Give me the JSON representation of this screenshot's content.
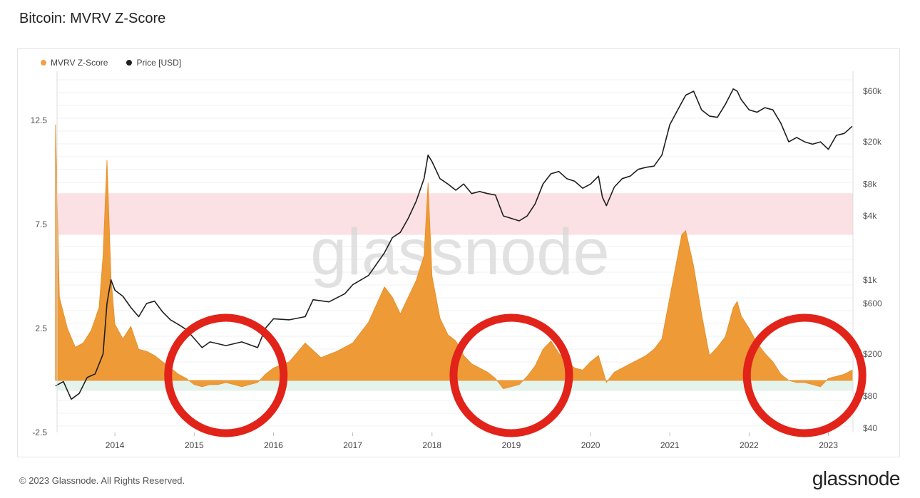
{
  "title": "Bitcoin: MVRV Z-Score",
  "watermark": "glassnode",
  "footer": "© 2023 Glassnode. All Rights Reserved.",
  "brand": "glassnode",
  "legend": [
    {
      "label": "MVRV Z-Score",
      "color": "#f7931a"
    },
    {
      "label": "Price [USD]",
      "color": "#222222"
    }
  ],
  "chart_data": {
    "type": "area",
    "title": "Bitcoin: MVRV Z-Score",
    "x_ticks": [
      "2014",
      "2015",
      "2016",
      "2017",
      "2018",
      "2019",
      "2020",
      "2021",
      "2022",
      "2023"
    ],
    "left_axis": {
      "ticks": [
        "12.5",
        "7.5",
        "2.5",
        "-2.5"
      ],
      "values": [
        12.5,
        7.5,
        2.5,
        -2.5
      ],
      "range": [
        -2.5,
        15.5
      ]
    },
    "right_axis": {
      "scale": "log",
      "ticks": [
        "$60k",
        "$20k",
        "$8k",
        "$4k",
        "$1k",
        "$600",
        "$200",
        "$80",
        "$40"
      ],
      "values": [
        60000,
        20000,
        8000,
        4000,
        1000,
        600,
        200,
        80,
        40
      ]
    },
    "bands": [
      {
        "zone": "overvalued",
        "from": 7.0,
        "to": 9.0,
        "color": "#fbe1e3"
      },
      {
        "zone": "undervalued",
        "from": -0.5,
        "to": 0.0,
        "color": "#e4f3ec"
      }
    ],
    "series": [
      {
        "name": "MVRV Z-Score",
        "axis": "left",
        "color": "#f7931a",
        "x": [
          2013.25,
          2013.3,
          2013.4,
          2013.5,
          2013.6,
          2013.7,
          2013.8,
          2013.85,
          2013.9,
          2013.95,
          2014.0,
          2014.1,
          2014.2,
          2014.3,
          2014.4,
          2014.5,
          2014.6,
          2014.7,
          2014.8,
          2014.9,
          2015.0,
          2015.1,
          2015.2,
          2015.3,
          2015.4,
          2015.5,
          2015.6,
          2015.7,
          2015.8,
          2015.9,
          2016.0,
          2016.2,
          2016.4,
          2016.6,
          2016.8,
          2017.0,
          2017.2,
          2017.4,
          2017.5,
          2017.6,
          2017.7,
          2017.8,
          2017.9,
          2017.95,
          2018.0,
          2018.1,
          2018.2,
          2018.3,
          2018.4,
          2018.5,
          2018.6,
          2018.7,
          2018.8,
          2018.9,
          2019.0,
          2019.1,
          2019.2,
          2019.3,
          2019.4,
          2019.5,
          2019.6,
          2019.7,
          2019.8,
          2019.9,
          2020.0,
          2020.1,
          2020.2,
          2020.3,
          2020.4,
          2020.5,
          2020.6,
          2020.7,
          2020.8,
          2020.9,
          2021.0,
          2021.1,
          2021.15,
          2021.2,
          2021.3,
          2021.4,
          2021.5,
          2021.6,
          2021.7,
          2021.8,
          2021.85,
          2021.9,
          2022.0,
          2022.1,
          2022.2,
          2022.3,
          2022.4,
          2022.5,
          2022.6,
          2022.7,
          2022.8,
          2022.9,
          2023.0,
          2023.1,
          2023.2,
          2023.3
        ],
        "values": [
          12.3,
          4.0,
          2.5,
          1.6,
          1.8,
          2.4,
          3.5,
          6.0,
          10.6,
          5.0,
          2.7,
          2.0,
          2.6,
          1.5,
          1.4,
          1.2,
          0.9,
          0.6,
          0.3,
          0.1,
          -0.2,
          -0.3,
          -0.2,
          -0.2,
          -0.1,
          -0.2,
          -0.3,
          -0.2,
          -0.1,
          0.3,
          0.6,
          0.9,
          1.8,
          1.1,
          1.4,
          1.8,
          2.8,
          4.5,
          4.0,
          3.2,
          4.0,
          4.8,
          6.0,
          9.5,
          5.0,
          3.0,
          2.2,
          1.9,
          1.2,
          0.8,
          0.6,
          0.4,
          0.1,
          -0.4,
          -0.3,
          -0.2,
          0.2,
          0.7,
          1.5,
          1.9,
          1.3,
          0.9,
          0.6,
          0.5,
          0.9,
          1.2,
          -0.1,
          0.4,
          0.6,
          0.8,
          1.0,
          1.2,
          1.5,
          2.0,
          4.0,
          6.0,
          7.0,
          7.2,
          5.5,
          3.2,
          1.2,
          1.6,
          2.1,
          3.5,
          3.8,
          3.1,
          2.5,
          1.8,
          1.3,
          0.9,
          0.3,
          0.0,
          -0.1,
          -0.1,
          -0.2,
          -0.3,
          0.1,
          0.2,
          0.3,
          0.5
        ]
      },
      {
        "name": "Price [USD]",
        "axis": "right",
        "color": "#222222",
        "x": [
          2013.25,
          2013.35,
          2013.45,
          2013.55,
          2013.65,
          2013.75,
          2013.85,
          2013.9,
          2013.95,
          2014.0,
          2014.1,
          2014.2,
          2014.3,
          2014.4,
          2014.5,
          2014.6,
          2014.7,
          2014.8,
          2014.9,
          2015.0,
          2015.1,
          2015.2,
          2015.4,
          2015.6,
          2015.8,
          2015.9,
          2016.0,
          2016.2,
          2016.4,
          2016.5,
          2016.7,
          2016.9,
          2017.0,
          2017.2,
          2017.4,
          2017.5,
          2017.6,
          2017.7,
          2017.8,
          2017.9,
          2017.95,
          2018.0,
          2018.1,
          2018.2,
          2018.3,
          2018.4,
          2018.5,
          2018.6,
          2018.7,
          2018.8,
          2018.9,
          2019.0,
          2019.1,
          2019.2,
          2019.3,
          2019.4,
          2019.5,
          2019.6,
          2019.7,
          2019.8,
          2019.9,
          2020.0,
          2020.1,
          2020.15,
          2020.2,
          2020.3,
          2020.4,
          2020.5,
          2020.6,
          2020.7,
          2020.8,
          2020.9,
          2021.0,
          2021.1,
          2021.2,
          2021.3,
          2021.4,
          2021.5,
          2021.6,
          2021.7,
          2021.8,
          2021.85,
          2021.9,
          2022.0,
          2022.1,
          2022.2,
          2022.3,
          2022.4,
          2022.5,
          2022.6,
          2022.7,
          2022.8,
          2022.9,
          2023.0,
          2023.1,
          2023.2,
          2023.3
        ],
        "values": [
          100,
          110,
          75,
          85,
          120,
          130,
          200,
          600,
          1000,
          800,
          700,
          550,
          450,
          600,
          630,
          500,
          420,
          380,
          340,
          280,
          230,
          260,
          240,
          260,
          230,
          350,
          430,
          420,
          450,
          650,
          620,
          740,
          900,
          1100,
          1800,
          2500,
          2800,
          3800,
          5500,
          9000,
          15000,
          13000,
          9000,
          8000,
          7000,
          8000,
          6500,
          6800,
          6500,
          6300,
          4000,
          3800,
          3600,
          4000,
          5200,
          8000,
          10000,
          10500,
          9000,
          8500,
          7300,
          8000,
          9500,
          6000,
          5000,
          7500,
          9000,
          9500,
          11000,
          11500,
          11800,
          15000,
          29000,
          40000,
          55000,
          60000,
          40000,
          35000,
          34000,
          45000,
          63000,
          60000,
          50000,
          40000,
          38000,
          42000,
          40000,
          30000,
          20000,
          22000,
          20000,
          19000,
          20000,
          17000,
          23000,
          24000,
          28000
        ]
      }
    ]
  }
}
